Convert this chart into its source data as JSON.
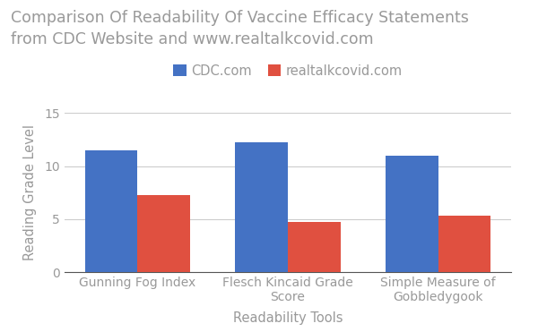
{
  "title": "Comparison Of Readability Of Vaccine Efficacy Statements\nfrom CDC Website and www.realtalkcovid.com",
  "categories": [
    "Gunning Fog Index",
    "Flesch Kincaid Grade\nScore",
    "Simple Measure of\nGobbledygook"
  ],
  "cdc_values": [
    11.5,
    12.2,
    11.0
  ],
  "real_values": [
    7.3,
    4.7,
    5.3
  ],
  "cdc_color": "#4472C4",
  "real_color": "#E05040",
  "cdc_label": "CDC.com",
  "real_label": "realtalkcovid.com",
  "xlabel": "Readability Tools",
  "ylabel": "Reading Grade Level",
  "ylim": [
    0,
    15
  ],
  "yticks": [
    0,
    5,
    10,
    15
  ],
  "title_color": "#999999",
  "axis_label_color": "#999999",
  "tick_color": "#999999",
  "background_color": "#ffffff",
  "bar_width": 0.35,
  "title_fontsize": 12.5,
  "label_fontsize": 10.5,
  "tick_fontsize": 10,
  "legend_fontsize": 10.5
}
